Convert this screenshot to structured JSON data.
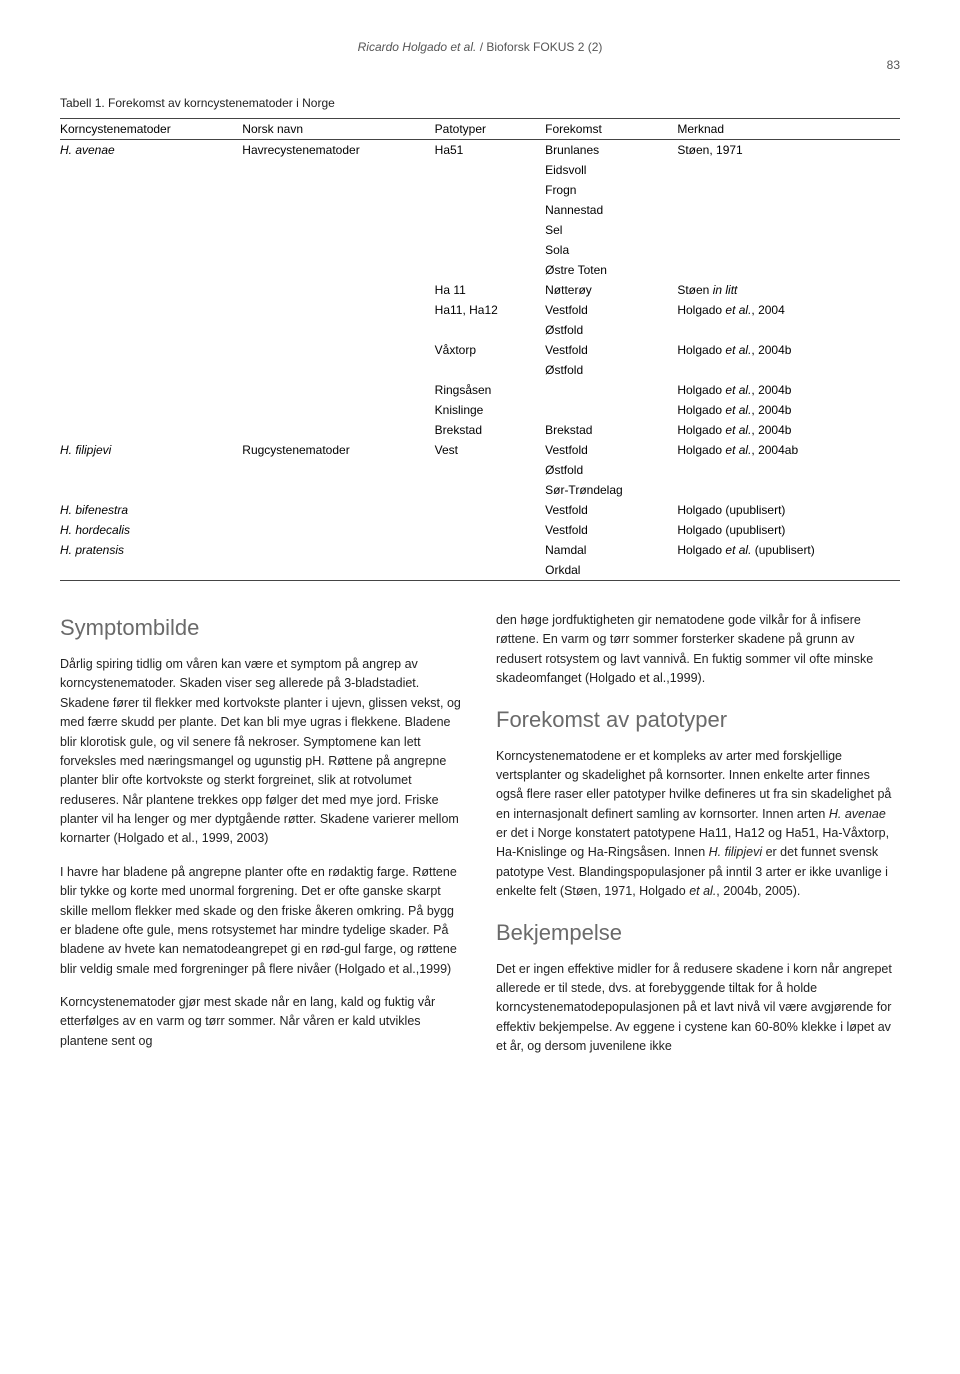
{
  "header": {
    "author": "Ricardo Holgado et al.",
    "journal": "/ Bioforsk FOKUS 2 (2)",
    "page_number": "83"
  },
  "table": {
    "caption": "Tabell 1. Forekomst av korncystenematoder i Norge",
    "headers": [
      "Korncystenematoder",
      "Norsk navn",
      "Patotyper",
      "Forekomst",
      "Merknad"
    ],
    "rows": [
      [
        "H. avenae",
        "Havrecystenematoder",
        "Ha51",
        "Brunlanes",
        "Støen, 1971"
      ],
      [
        "",
        "",
        "",
        "Eidsvoll",
        ""
      ],
      [
        "",
        "",
        "",
        "Frogn",
        ""
      ],
      [
        "",
        "",
        "",
        "Nannestad",
        ""
      ],
      [
        "",
        "",
        "",
        "Sel",
        ""
      ],
      [
        "",
        "",
        "",
        "Sola",
        ""
      ],
      [
        "",
        "",
        "",
        "Østre Toten",
        ""
      ],
      [
        "",
        "",
        "Ha 11",
        "Nøtterøy",
        "Støen in litt"
      ],
      [
        "",
        "",
        "Ha11, Ha12",
        "Vestfold",
        "Holgado et al., 2004"
      ],
      [
        "",
        "",
        "",
        "Østfold",
        ""
      ],
      [
        "",
        "",
        "Våxtorp",
        "Vestfold",
        "Holgado et al., 2004b"
      ],
      [
        "",
        "",
        "",
        "Østfold",
        ""
      ],
      [
        "",
        "",
        "Ringsåsen",
        "",
        "Holgado et al., 2004b"
      ],
      [
        "",
        "",
        "Knislinge",
        "",
        "Holgado et al., 2004b"
      ],
      [
        "",
        "",
        "Brekstad",
        "Brekstad",
        "Holgado et al., 2004b"
      ],
      [
        "H. filipjevi",
        "Rugcystenematoder",
        "Vest",
        "Vestfold",
        "Holgado et al., 2004ab"
      ],
      [
        "",
        "",
        "",
        "Østfold",
        ""
      ],
      [
        "",
        "",
        "",
        "Sør-Trøndelag",
        ""
      ],
      [
        "H. bifenestra",
        "",
        "",
        "Vestfold",
        "Holgado (upublisert)"
      ],
      [
        "H. hordecalis",
        "",
        "",
        "Vestfold",
        "Holgado (upublisert)"
      ],
      [
        "H. pratensis",
        "",
        "",
        "Namdal",
        "Holgado et al. (upublisert)"
      ],
      [
        "",
        "",
        "",
        "Orkdal",
        ""
      ]
    ],
    "italic_col0": true
  },
  "sections": {
    "s1": {
      "heading": "Symptombilde",
      "p1": "Dårlig spiring tidlig om våren kan være et symptom på angrep av korncystenematoder. Skaden viser seg allerede på 3-bladstadiet. Skadene fører til flekker med kortvokste planter i ujevn, glissen vekst, og med færre skudd per plante. Det kan bli mye ugras i flekkene. Bladene blir klorotisk gule, og vil senere få nekroser. Symptomene kan lett forveksles med næringsmangel og ugunstig pH. Røttene på angrepne planter blir ofte kortvokste og sterkt forgreinet, slik at rotvolumet reduseres. Når plantene trekkes opp følger det med mye jord. Friske planter vil ha lenger og mer dyptgående røtter. Skadene varierer mellom kornarter (Holgado et al., 1999, 2003)",
      "p2": "I havre har bladene på angrepne planter ofte en rødaktig farge. Røttene blir tykke og korte med unormal forgrening. Det er ofte ganske skarpt skille mellom flekker med skade og den friske åkeren omkring. På bygg er bladene ofte gule, mens rotsystemet har mindre tydelige skader. På bladene av hvete kan nematodeangrepet gi en rød-gul farge, og røttene blir veldig smale med forgreninger på flere nivåer (Holgado et al.,1999)",
      "p3": "Korncystenematoder gjør mest skade når en lang, kald og fuktig vår etterfølges av en varm og tørr sommer. Når våren er kald utvikles plantene sent og",
      "p4": "den høge jordfuktigheten gir nematodene gode vilkår for å infisere røttene. En varm og tørr sommer forsterker skadene på grunn av redusert rotsystem og lavt vannivå. En fuktig sommer vil ofte minske skadeomfanget (Holgado et al.,1999)."
    },
    "s2": {
      "heading": "Forekomst av patotyper",
      "p1a": "Korncystenematodene er et kompleks av arter med forskjellige vertsplanter og skadelighet på kornsorter. Innen enkelte arter finnes også flere raser eller patotyper hvilke defineres ut fra sin skadelighet på en internasjonalt definert samling av kornsorter. Innen arten ",
      "p1b": "H. avenae",
      "p1c": " er det i Norge konstatert patotypene Ha11, Ha12 og Ha51, Ha-Våxtorp, Ha-Knislinge og Ha-Ringsåsen. Innen ",
      "p1d": "H. filipjevi",
      "p1e": " er det funnet svensk patotype Vest. Blandingspopulasjoner på inntil 3 arter er ikke uvanlige i enkelte felt (Støen, 1971, Holgado ",
      "p1f": "et al.",
      "p1g": ", 2004b, 2005)."
    },
    "s3": {
      "heading": "Bekjempelse",
      "p1": "Det er ingen effektive midler for å redusere skadene i korn når angrepet allerede er til stede, dvs. at forebyggende tiltak for å holde korncystenematodepopulasjonen på et lavt nivå vil være avgjørende for effektiv bekjempelse. Av eggene i cystene kan 60-80% klekke i løpet av et år, og dersom juvenilene ikke"
    }
  }
}
